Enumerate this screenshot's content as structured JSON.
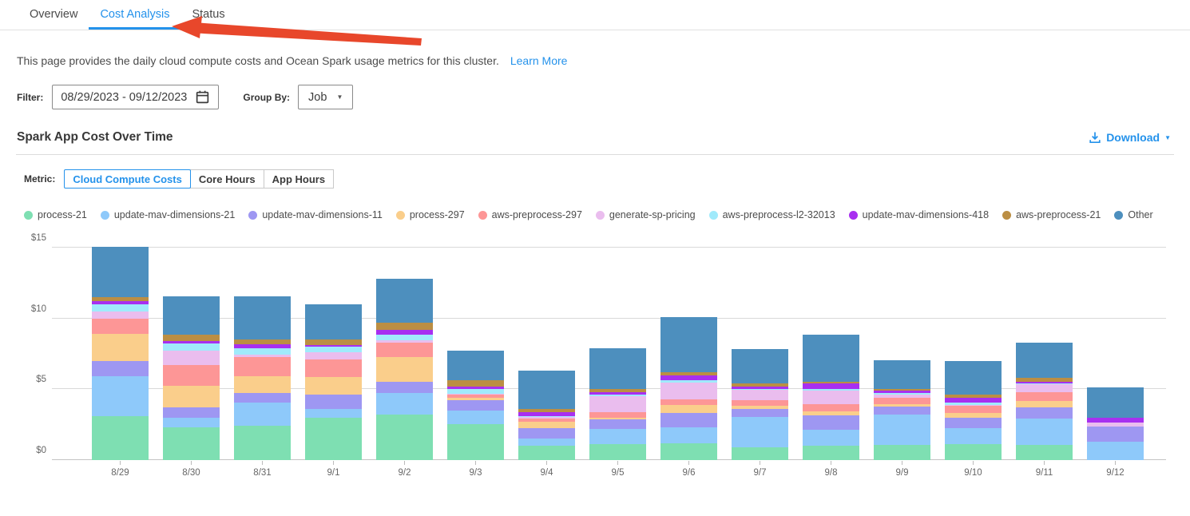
{
  "tabs": [
    {
      "label": "Overview",
      "active": false
    },
    {
      "label": "Cost Analysis",
      "active": true
    },
    {
      "label": "Status",
      "active": false
    }
  ],
  "annotation": {
    "shape": "red-arrow",
    "color": "#e8472b",
    "points_to": "Cost Analysis tab"
  },
  "description": {
    "text": "This page provides the daily cloud compute costs and Ocean Spark usage metrics for this cluster.",
    "link_label": "Learn More"
  },
  "filter": {
    "label": "Filter:",
    "date_range": "08/29/2023  -  09/12/2023",
    "group_by_label": "Group By:",
    "group_by_value": "Job"
  },
  "section": {
    "title": "Spark App Cost Over Time",
    "download_label": "Download"
  },
  "metric": {
    "label": "Metric:",
    "options": [
      {
        "label": "Cloud Compute Costs",
        "active": true
      },
      {
        "label": "Core Hours",
        "active": false
      },
      {
        "label": "App Hours",
        "active": false
      }
    ]
  },
  "accent_color": "#2492eb",
  "chart_data": {
    "type": "bar",
    "stacked": true,
    "title": "Spark App Cost Over Time",
    "xlabel": "",
    "ylabel": "Cloud Compute Costs ($)",
    "ylim": [
      0,
      15
    ],
    "yticks": [
      {
        "value": 0,
        "label": "$0"
      },
      {
        "value": 5,
        "label": "$5"
      },
      {
        "value": 10,
        "label": "$10"
      },
      {
        "value": 15,
        "label": "$15"
      }
    ],
    "grid": true,
    "legend_position": "top",
    "categories": [
      "8/29",
      "8/30",
      "8/31",
      "9/1",
      "9/2",
      "9/3",
      "9/4",
      "9/5",
      "9/6",
      "9/7",
      "9/8",
      "9/9",
      "9/10",
      "9/11",
      "9/12"
    ],
    "series": [
      {
        "name": "process-21",
        "color": "#7edfb2",
        "values": [
          3.1,
          2.3,
          2.4,
          3.0,
          3.2,
          2.55,
          1.0,
          1.15,
          1.2,
          0.9,
          1.0,
          1.05,
          1.15,
          1.05,
          0.0
        ]
      },
      {
        "name": "update-mav-dimensions-21",
        "color": "#8ec9fa",
        "values": [
          2.85,
          0.7,
          1.65,
          0.6,
          1.55,
          0.95,
          0.55,
          1.05,
          1.1,
          2.15,
          1.15,
          2.15,
          1.1,
          1.9,
          1.3
        ]
      },
      {
        "name": "update-mav-dimensions-11",
        "color": "#9e97f2",
        "values": [
          1.05,
          0.75,
          0.7,
          1.05,
          0.75,
          0.75,
          0.7,
          0.65,
          1.05,
          0.55,
          1.0,
          0.6,
          0.75,
          0.8,
          1.05
        ]
      },
      {
        "name": "process-297",
        "color": "#face8b",
        "values": [
          1.9,
          1.5,
          1.2,
          1.2,
          1.75,
          0.15,
          0.45,
          0.15,
          0.55,
          0.25,
          0.3,
          0.15,
          0.35,
          0.45,
          0.0
        ]
      },
      {
        "name": "aws-preprocess-297",
        "color": "#fd9696",
        "values": [
          1.1,
          1.45,
          1.3,
          1.25,
          1.05,
          0.2,
          0.25,
          0.4,
          0.4,
          0.4,
          0.5,
          0.45,
          0.5,
          0.6,
          0.0
        ]
      },
      {
        "name": "generate-sp-pricing",
        "color": "#eabdee",
        "values": [
          0.5,
          1.05,
          0.2,
          0.5,
          0.15,
          0.1,
          0.1,
          1.1,
          1.15,
          0.7,
          0.95,
          0.25,
          0.05,
          0.55,
          0.3
        ]
      },
      {
        "name": "aws-preprocess-l2-32013",
        "color": "#a0eafb",
        "values": [
          0.5,
          0.5,
          0.45,
          0.4,
          0.4,
          0.3,
          0.05,
          0.15,
          0.2,
          0.1,
          0.15,
          0.1,
          0.15,
          0.05,
          0.0
        ]
      },
      {
        "name": "update-mav-dimensions-418",
        "color": "#a82ff0",
        "values": [
          0.2,
          0.15,
          0.3,
          0.1,
          0.35,
          0.2,
          0.3,
          0.15,
          0.35,
          0.15,
          0.35,
          0.15,
          0.35,
          0.15,
          0.35
        ]
      },
      {
        "name": "aws-preprocess-21",
        "color": "#bb8e43",
        "values": [
          0.3,
          0.45,
          0.3,
          0.4,
          0.5,
          0.45,
          0.2,
          0.2,
          0.2,
          0.2,
          0.15,
          0.15,
          0.2,
          0.25,
          0.0
        ]
      },
      {
        "name": "Other",
        "color": "#4d8fbe",
        "values": [
          3.55,
          2.7,
          3.05,
          2.5,
          3.1,
          2.1,
          2.7,
          2.9,
          3.9,
          2.45,
          3.3,
          2.0,
          2.4,
          2.5,
          2.15
        ]
      }
    ]
  }
}
